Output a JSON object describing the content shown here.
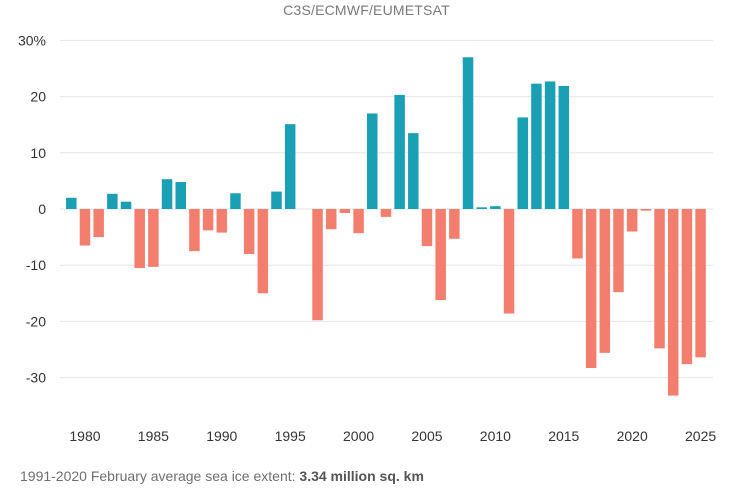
{
  "header": {
    "source": "C3S/ECMWF/EUMETSAT"
  },
  "footnote": {
    "text": "1991-2020 February average sea ice extent: ",
    "value": "3.34 million sq. km"
  },
  "colors": {
    "positive": "#1aa0b4",
    "negative": "#f47e6e",
    "grid": "#e6e6e6"
  },
  "chart_data": {
    "type": "bar",
    "title": "",
    "xlabel": "",
    "ylabel": "",
    "ylim": [
      -35,
      31
    ],
    "yticks": [
      30,
      20,
      10,
      0,
      -10,
      -20,
      -30
    ],
    "ytick_labels": [
      "30%",
      "20",
      "10",
      "0",
      "-10",
      "-20",
      "-30"
    ],
    "xticks": [
      1980,
      1985,
      1990,
      1995,
      2000,
      2005,
      2010,
      2015,
      2020,
      2025
    ],
    "grid": true,
    "categories": [
      1979,
      1980,
      1981,
      1982,
      1983,
      1984,
      1985,
      1986,
      1987,
      1988,
      1989,
      1990,
      1991,
      1992,
      1993,
      1994,
      1995,
      1996,
      1997,
      1998,
      1999,
      2000,
      2001,
      2002,
      2003,
      2004,
      2005,
      2006,
      2007,
      2008,
      2009,
      2010,
      2011,
      2012,
      2013,
      2014,
      2015,
      2016,
      2017,
      2018,
      2019,
      2020,
      2021,
      2022,
      2023,
      2024,
      2025
    ],
    "values": [
      2.0,
      -6.5,
      -5.0,
      2.7,
      1.3,
      -10.5,
      -10.3,
      5.3,
      4.8,
      -7.5,
      -3.8,
      -4.2,
      2.8,
      -8.0,
      -15.0,
      3.1,
      15.1,
      0,
      -19.8,
      -3.6,
      -0.7,
      -4.3,
      17.0,
      -1.4,
      20.3,
      13.5,
      -6.6,
      -16.2,
      -5.3,
      27.0,
      0.3,
      0.5,
      -18.6,
      16.3,
      22.3,
      22.7,
      21.9,
      -8.8,
      -28.3,
      -25.6,
      -14.8,
      -4.0,
      -0.3,
      -24.8,
      -33.2,
      -27.6,
      -26.4
    ]
  }
}
